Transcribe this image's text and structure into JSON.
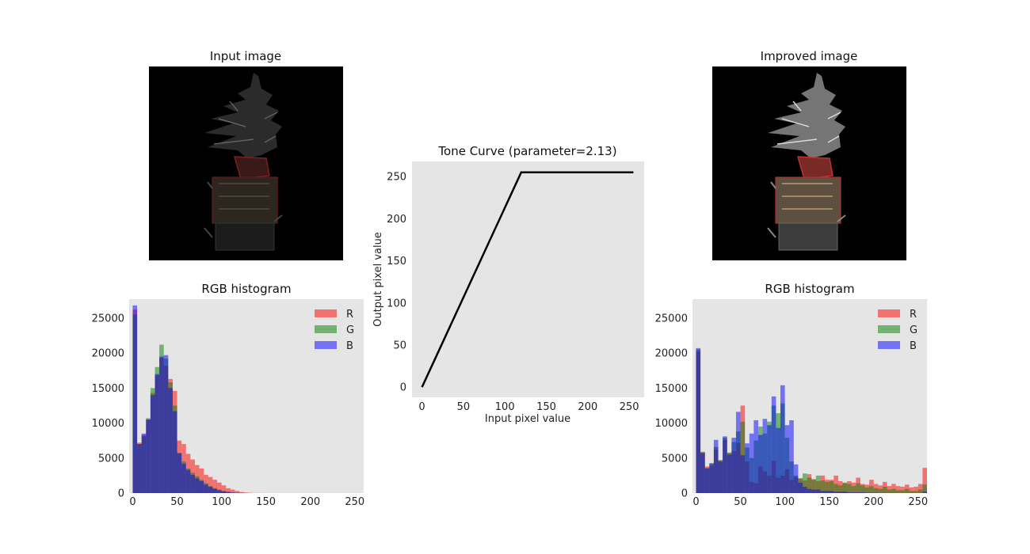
{
  "chart_data": [
    {
      "type": "image",
      "title": "Input image"
    },
    {
      "type": "image",
      "title": "Improved image"
    },
    {
      "type": "line",
      "title": "Tone Curve (parameter=2.13)",
      "xlabel": "Input pixel value",
      "ylabel": "Output pixel value",
      "xlim": [
        -12,
        268
      ],
      "ylim": [
        -12,
        268
      ],
      "x_ticks": [
        0,
        50,
        100,
        150,
        200,
        250
      ],
      "y_ticks": [
        0,
        50,
        100,
        150,
        200,
        250
      ],
      "series": [
        {
          "x": [
            0,
            119.7,
            255
          ],
          "y": [
            0,
            255,
            255
          ],
          "color": "#000000"
        }
      ],
      "grid": false
    },
    {
      "type": "bar",
      "title": "RGB histogram",
      "xlim": [
        -4,
        260
      ],
      "ylim": [
        0,
        27700
      ],
      "x_ticks": [
        0,
        50,
        100,
        150,
        200,
        250
      ],
      "y_ticks": [
        0,
        5000,
        10000,
        15000,
        20000,
        25000
      ],
      "bin_start": 0,
      "bin_width": 5,
      "legend": "top-right",
      "series": [
        {
          "name": "R",
          "color": "#ff0000",
          "values": [
            26200,
            7200,
            8300,
            10500,
            14300,
            16800,
            19300,
            18200,
            16300,
            14600,
            7500,
            7000,
            5600,
            4800,
            4000,
            3500,
            2600,
            2300,
            1900,
            1500,
            1100,
            700,
            500,
            300,
            150,
            80,
            40,
            20,
            10,
            5,
            0,
            0,
            0,
            0,
            0,
            0,
            0,
            0,
            0,
            0,
            0,
            0,
            0,
            0,
            0,
            0,
            0,
            0,
            0,
            0,
            0,
            0
          ]
        },
        {
          "name": "G",
          "color": "#008000",
          "values": [
            25500,
            7000,
            8100,
            10700,
            15000,
            18000,
            21200,
            19200,
            15800,
            12500,
            5700,
            4500,
            3500,
            2900,
            2400,
            1900,
            1400,
            1000,
            700,
            500,
            300,
            200,
            100,
            50,
            20,
            10,
            5,
            0,
            0,
            0,
            0,
            0,
            0,
            0,
            0,
            0,
            0,
            0,
            0,
            0,
            0,
            0,
            0,
            0,
            0,
            0,
            0,
            0,
            0,
            0,
            0,
            0
          ]
        },
        {
          "name": "B",
          "color": "#0000ff",
          "values": [
            26800,
            7000,
            8500,
            10500,
            14000,
            17000,
            19500,
            19700,
            15000,
            11700,
            5700,
            4200,
            3300,
            2600,
            2100,
            1700,
            1200,
            900,
            600,
            400,
            250,
            150,
            80,
            40,
            20,
            10,
            0,
            0,
            0,
            0,
            0,
            0,
            0,
            0,
            0,
            0,
            0,
            0,
            0,
            0,
            0,
            0,
            0,
            0,
            0,
            0,
            0,
            0,
            0,
            0,
            0,
            0
          ]
        }
      ]
    },
    {
      "type": "bar",
      "title": "RGB histogram",
      "xlim": [
        -4,
        260
      ],
      "ylim": [
        0,
        27700
      ],
      "x_ticks": [
        0,
        50,
        100,
        150,
        200,
        250
      ],
      "y_ticks": [
        0,
        5000,
        10000,
        15000,
        20000,
        25000
      ],
      "bin_start": 0,
      "bin_width": 5,
      "legend": "top-right",
      "series": [
        {
          "name": "R",
          "color": "#ff0000",
          "values": [
            20200,
            5800,
            3800,
            3900,
            6200,
            4700,
            7600,
            5700,
            6000,
            7200,
            12500,
            4500,
            1600,
            1400,
            3800,
            3100,
            2500,
            4600,
            2200,
            2500,
            3400,
            1900,
            2300,
            2100,
            1800,
            2700,
            2000,
            1700,
            2500,
            1900,
            1900,
            2500,
            1700,
            1400,
            1700,
            1500,
            2200,
            1300,
            1200,
            1900,
            1300,
            1100,
            1600,
            1000,
            1300,
            1000,
            900,
            1200,
            800,
            900,
            1300,
            3600
          ]
        },
        {
          "name": "G",
          "color": "#008000",
          "values": [
            20500,
            5900,
            3600,
            4300,
            6600,
            4700,
            7900,
            5800,
            7300,
            8800,
            10200,
            6500,
            5000,
            7500,
            9500,
            8500,
            10200,
            12500,
            11400,
            12800,
            7900,
            4500,
            2500,
            2100,
            2800,
            2200,
            1900,
            2500,
            1800,
            1600,
            1700,
            1300,
            1100,
            1500,
            1300,
            1000,
            1400,
            1100,
            800,
            1000,
            700,
            600,
            900,
            500,
            600,
            400,
            400,
            600,
            300,
            300,
            500,
            1200
          ]
        },
        {
          "name": "B",
          "color": "#0000ff",
          "values": [
            20700,
            5700,
            3500,
            4200,
            7600,
            4500,
            8100,
            5500,
            7900,
            11600,
            5400,
            7100,
            8500,
            10400,
            8300,
            10600,
            9700,
            13800,
            9300,
            15400,
            9700,
            10400,
            4100,
            1500,
            900,
            600,
            500,
            500,
            300,
            300,
            300,
            200,
            200,
            200,
            100,
            100,
            100,
            100,
            50,
            50,
            50,
            30,
            30,
            20,
            20,
            10,
            10,
            10,
            10,
            0,
            10,
            200
          ]
        }
      ]
    }
  ]
}
